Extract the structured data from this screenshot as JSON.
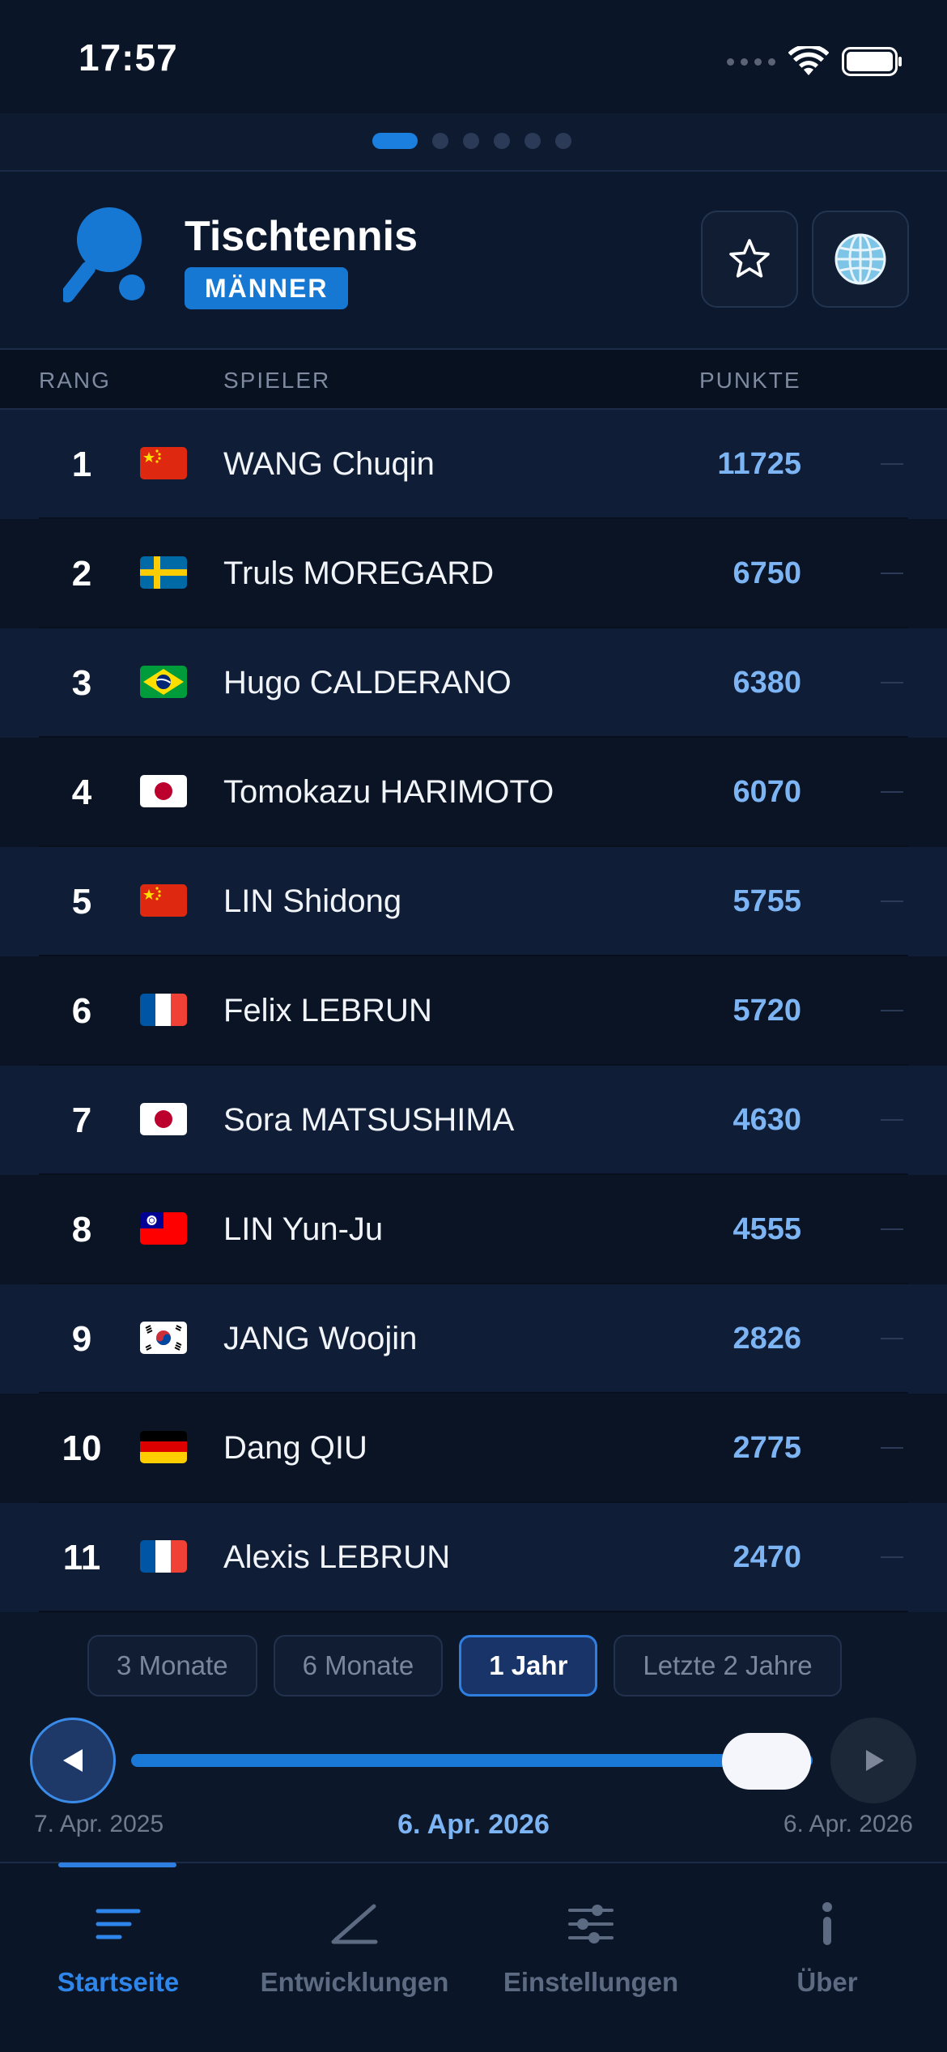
{
  "status_bar": {
    "time": "17:57"
  },
  "pager": {
    "count": 6,
    "active_index": 0
  },
  "header": {
    "title": "Tischtennis",
    "badge": "MÄNNER",
    "icons": {
      "logo": "table-tennis-paddle-icon",
      "favorite": "star-outline-icon",
      "globe": "globe-icon"
    }
  },
  "columns": {
    "rank": "RANG",
    "player": "SPIELER",
    "points": "PUNKTE"
  },
  "rows": [
    {
      "rank": "1",
      "flag": "CN",
      "name": "WANG Chuqin",
      "points": "11725"
    },
    {
      "rank": "2",
      "flag": "SE",
      "name": "Truls MOREGARD",
      "points": "6750"
    },
    {
      "rank": "3",
      "flag": "BR",
      "name": "Hugo CALDERANO",
      "points": "6380"
    },
    {
      "rank": "4",
      "flag": "JP",
      "name": "Tomokazu HARIMOTO",
      "points": "6070"
    },
    {
      "rank": "5",
      "flag": "CN",
      "name": "LIN Shidong",
      "points": "5755"
    },
    {
      "rank": "6",
      "flag": "FR",
      "name": "Felix LEBRUN",
      "points": "5720"
    },
    {
      "rank": "7",
      "flag": "JP",
      "name": "Sora MATSUSHIMA",
      "points": "4630"
    },
    {
      "rank": "8",
      "flag": "TW",
      "name": "LIN Yun-Ju",
      "points": "4555"
    },
    {
      "rank": "9",
      "flag": "KR",
      "name": "JANG Woojin",
      "points": "2826"
    },
    {
      "rank": "10",
      "flag": "DE",
      "name": "Dang QIU",
      "points": "2775"
    },
    {
      "rank": "11",
      "flag": "FR",
      "name": "Alexis LEBRUN",
      "points": "2470"
    }
  ],
  "periods": [
    {
      "label": "3 Monate",
      "active": false
    },
    {
      "label": "6 Monate",
      "active": false
    },
    {
      "label": "1 Jahr",
      "active": true
    },
    {
      "label": "Letzte 2 Jahre",
      "active": false
    }
  ],
  "timeline": {
    "start": "7. Apr. 2025",
    "current": "6. Apr. 2026",
    "end": "6. Apr. 2026",
    "position": 1.0
  },
  "tabs": [
    {
      "label": "Startseite",
      "icon": "list-lines-icon",
      "active": true
    },
    {
      "label": "Entwicklungen",
      "icon": "trend-line-icon",
      "active": false
    },
    {
      "label": "Einstellungen",
      "icon": "sliders-icon",
      "active": false
    },
    {
      "label": "Über",
      "icon": "info-icon",
      "active": false
    }
  ],
  "colors": {
    "accent": "#1b7fe0",
    "points": "#7db4f3",
    "background": "#0b1528"
  }
}
